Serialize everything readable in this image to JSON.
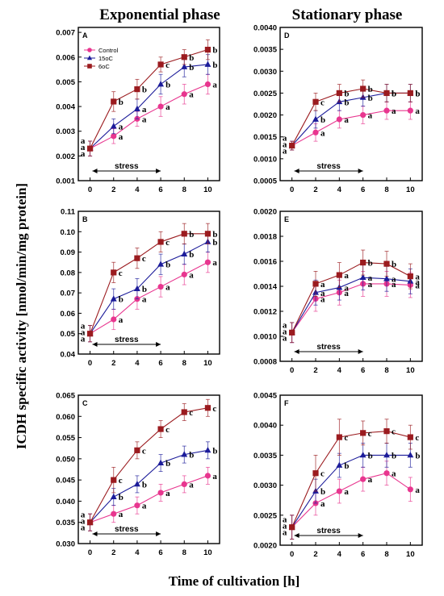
{
  "figure": {
    "col_titles": [
      "Exponential phase",
      "Stationary phase"
    ],
    "ylabel": "ICDH specific activity [nmol/min/mg protein]",
    "xlabel": "Time of cultivation [h]",
    "stress_label": "stress"
  },
  "colors": {
    "Control": "#e8368f",
    "15oC": "#1c1c9a",
    "6oC": "#9b1b1f"
  },
  "legend": [
    "Control",
    "15oC",
    "6oC"
  ],
  "chart_data": [
    {
      "type": "line",
      "label": "A",
      "ylim": [
        0.001,
        0.0072
      ],
      "yticks": [
        "0.001",
        "0.002",
        "0.003",
        "0.004",
        "0.005",
        "0.006",
        "0.007"
      ],
      "x": [
        0,
        2,
        4,
        6,
        8,
        10
      ],
      "xticks": [
        "0",
        "2",
        "4",
        "6",
        "8",
        "10"
      ],
      "series": [
        {
          "name": "Control",
          "values": [
            0.0023,
            0.0028,
            0.0035,
            0.004,
            0.0045,
            0.0049
          ],
          "err": [
            0.0003,
            0.0003,
            0.0003,
            0.0004,
            0.0004,
            0.0004
          ],
          "labels": [
            "a",
            "a",
            "a",
            "a",
            "a",
            "a"
          ]
        },
        {
          "name": "15oC",
          "values": [
            0.0023,
            0.0032,
            0.0039,
            0.0049,
            0.0056,
            0.0057
          ],
          "err": [
            0.0003,
            0.0003,
            0.0004,
            0.0004,
            0.0004,
            0.0004
          ],
          "labels": [
            "a",
            "a",
            "a",
            "b",
            "b",
            "b"
          ]
        },
        {
          "name": "6oC",
          "values": [
            0.0023,
            0.0042,
            0.0047,
            0.0057,
            0.006,
            0.0063
          ],
          "err": [
            0.0003,
            0.0004,
            0.0004,
            0.0003,
            0.0003,
            0.0004
          ],
          "labels": [
            "a",
            "b",
            "b",
            "c",
            "b",
            "b"
          ]
        }
      ]
    },
    {
      "type": "line",
      "label": "D",
      "ylim": [
        0.0005,
        0.004
      ],
      "yticks": [
        "0.0005",
        "0.0010",
        "0.0015",
        "0.0020",
        "0.0025",
        "0.0030",
        "0.0035",
        "0.0040"
      ],
      "x": [
        0,
        2,
        4,
        6,
        8,
        10
      ],
      "xticks": [
        "0",
        "2",
        "4",
        "6",
        "8",
        "10"
      ],
      "series": [
        {
          "name": "Control",
          "values": [
            0.0013,
            0.0016,
            0.0019,
            0.002,
            0.0021,
            0.0021
          ],
          "err": [
            0.0001,
            0.0002,
            0.0002,
            0.0002,
            0.0002,
            0.0002
          ],
          "labels": [
            "a",
            "a",
            "a",
            "a",
            "a",
            "a"
          ]
        },
        {
          "name": "15oC",
          "values": [
            0.0013,
            0.0019,
            0.0023,
            0.0024,
            0.0025,
            0.0025
          ],
          "err": [
            0.0001,
            0.0002,
            0.0002,
            0.0002,
            0.0002,
            0.0002
          ],
          "labels": [
            "a",
            "b",
            "b",
            "b",
            "b",
            "b"
          ]
        },
        {
          "name": "6oC",
          "values": [
            0.0013,
            0.0023,
            0.0025,
            0.0026,
            0.0025,
            0.0025
          ],
          "err": [
            0.0001,
            0.0002,
            0.0002,
            0.0002,
            0.0002,
            0.0002
          ],
          "labels": [
            "a",
            "c",
            "b",
            "b",
            "b",
            "b"
          ]
        }
      ]
    },
    {
      "type": "line",
      "label": "B",
      "ylim": [
        0.04,
        0.11
      ],
      "yticks": [
        "0.04",
        "0.05",
        "0.06",
        "0.07",
        "0.08",
        "0.09",
        "0.10",
        "0.11"
      ],
      "x": [
        0,
        2,
        4,
        6,
        8,
        10
      ],
      "xticks": [
        "0",
        "2",
        "4",
        "6",
        "8",
        "10"
      ],
      "series": [
        {
          "name": "Control",
          "values": [
            0.05,
            0.057,
            0.067,
            0.073,
            0.079,
            0.085
          ],
          "err": [
            0.004,
            0.005,
            0.005,
            0.005,
            0.005,
            0.005
          ],
          "labels": [
            "a",
            "a",
            "a",
            "a",
            "a",
            "a"
          ]
        },
        {
          "name": "15oC",
          "values": [
            0.05,
            0.067,
            0.072,
            0.084,
            0.089,
            0.095
          ],
          "err": [
            0.004,
            0.005,
            0.005,
            0.005,
            0.005,
            0.005
          ],
          "labels": [
            "a",
            "b",
            "b",
            "b",
            "b",
            "b"
          ]
        },
        {
          "name": "6oC",
          "values": [
            0.05,
            0.08,
            0.087,
            0.095,
            0.099,
            0.099
          ],
          "err": [
            0.004,
            0.005,
            0.005,
            0.005,
            0.005,
            0.005
          ],
          "labels": [
            "a",
            "c",
            "c",
            "c",
            "b",
            "b"
          ]
        }
      ]
    },
    {
      "type": "line",
      "label": "E",
      "ylim": [
        0.0008,
        0.002
      ],
      "yticks": [
        "0.0008",
        "0.0010",
        "0.0012",
        "0.0014",
        "0.0016",
        "0.0018",
        "0.0020"
      ],
      "x": [
        0,
        2,
        4,
        6,
        8,
        10
      ],
      "xticks": [
        "0",
        "2",
        "4",
        "6",
        "8",
        "10"
      ],
      "series": [
        {
          "name": "Control",
          "values": [
            0.00103,
            0.0013,
            0.00135,
            0.00142,
            0.00142,
            0.00141
          ],
          "err": [
            8e-05,
            0.0001,
            0.0001,
            0.0001,
            0.0001,
            0.0001
          ],
          "labels": [
            "a",
            "a",
            "a",
            "a",
            "a",
            "a"
          ]
        },
        {
          "name": "15oC",
          "values": [
            0.00103,
            0.00135,
            0.00139,
            0.00147,
            0.00146,
            0.00144
          ],
          "err": [
            8e-05,
            0.0001,
            0.0001,
            0.0001,
            0.0001,
            0.0001
          ],
          "labels": [
            "a",
            "a",
            "a",
            "a",
            "a",
            "a"
          ]
        },
        {
          "name": "6oC",
          "values": [
            0.00103,
            0.00142,
            0.00149,
            0.00159,
            0.00158,
            0.00148
          ],
          "err": [
            8e-05,
            0.0001,
            0.0001,
            0.0001,
            0.0001,
            0.0001
          ],
          "labels": [
            "a",
            "a",
            "a",
            "b",
            "b",
            "a"
          ]
        }
      ]
    },
    {
      "type": "line",
      "label": "C",
      "ylim": [
        0.03,
        0.065
      ],
      "yticks": [
        "0.030",
        "0.035",
        "0.040",
        "0.045",
        "0.050",
        "0.055",
        "0.060",
        "0.065"
      ],
      "x": [
        0,
        2,
        4,
        6,
        8,
        10
      ],
      "xticks": [
        "0",
        "2",
        "4",
        "6",
        "8",
        "10"
      ],
      "series": [
        {
          "name": "Control",
          "values": [
            0.035,
            0.037,
            0.039,
            0.042,
            0.044,
            0.046
          ],
          "err": [
            0.002,
            0.002,
            0.002,
            0.002,
            0.002,
            0.002
          ],
          "labels": [
            "a",
            "a",
            "a",
            "a",
            "a",
            "a"
          ]
        },
        {
          "name": "15oC",
          "values": [
            0.035,
            0.041,
            0.044,
            0.049,
            0.051,
            0.052
          ],
          "err": [
            0.002,
            0.002,
            0.002,
            0.002,
            0.002,
            0.002
          ],
          "labels": [
            "a",
            "b",
            "b",
            "b",
            "b",
            "b"
          ]
        },
        {
          "name": "6oC",
          "values": [
            0.035,
            0.045,
            0.052,
            0.057,
            0.061,
            0.062
          ],
          "err": [
            0.002,
            0.003,
            0.002,
            0.002,
            0.002,
            0.002
          ],
          "labels": [
            "a",
            "c",
            "c",
            "c",
            "c",
            "c"
          ]
        }
      ]
    },
    {
      "type": "line",
      "label": "F",
      "ylim": [
        0.002,
        0.0045
      ],
      "yticks": [
        "0.0020",
        "0.0025",
        "0.0030",
        "0.0035",
        "0.0040",
        "0.0045"
      ],
      "x": [
        0,
        2,
        4,
        6,
        8,
        10
      ],
      "xticks": [
        "0",
        "2",
        "4",
        "6",
        "8",
        "10"
      ],
      "series": [
        {
          "name": "Control",
          "values": [
            0.0023,
            0.0027,
            0.0029,
            0.0031,
            0.0032,
            0.00293
          ],
          "err": [
            0.0002,
            0.0002,
            0.0002,
            0.0002,
            0.0002,
            0.0002
          ],
          "labels": [
            "a",
            "a",
            "a",
            "a",
            "a",
            "a"
          ]
        },
        {
          "name": "15oC",
          "values": [
            0.0023,
            0.0029,
            0.00333,
            0.0035,
            0.0035,
            0.0035
          ],
          "err": [
            0.0002,
            0.0002,
            0.0002,
            0.0002,
            0.0002,
            0.0002
          ],
          "labels": [
            "a",
            "b",
            "b",
            "b",
            "b",
            "b"
          ]
        },
        {
          "name": "6oC",
          "values": [
            0.0023,
            0.0032,
            0.0038,
            0.00387,
            0.0039,
            0.0038
          ],
          "err": [
            0.0002,
            0.0003,
            0.0003,
            0.0002,
            0.0002,
            0.0002
          ],
          "labels": [
            "a",
            "c",
            "c",
            "c",
            "c",
            "c"
          ]
        }
      ]
    }
  ]
}
